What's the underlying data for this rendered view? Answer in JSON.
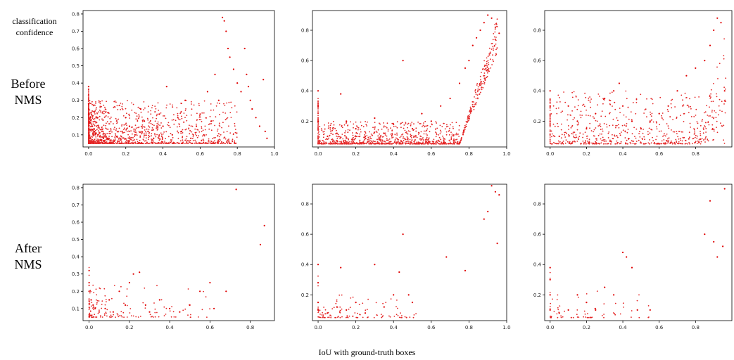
{
  "figure": {
    "y_axis_label": "classification confidence",
    "row_labels": [
      "Before NMS",
      "After NMS"
    ],
    "x_axis_label": "IoU with ground-truth boxes",
    "point_color": "#e00000"
  },
  "chart_data": [
    {
      "type": "scatter",
      "row": "Before NMS",
      "column": 1,
      "xlim": [
        -0.03,
        1.0
      ],
      "ylim": [
        0.03,
        0.82
      ],
      "xticks": [
        0.0,
        0.2,
        0.4,
        0.6,
        0.8,
        1.0
      ],
      "xtick_labels": [
        "0.0",
        "0.2",
        "0.4",
        "0.6",
        "0.8",
        "1.0"
      ],
      "yticks": [
        0.1,
        0.2,
        0.3,
        0.4,
        0.5,
        0.6,
        0.7,
        0.8
      ],
      "ytick_labels": [
        "0.1",
        "0.2",
        "0.3",
        "0.4",
        "0.5",
        "0.6",
        "0.7",
        "0.8"
      ],
      "grid": false,
      "points": [
        [
          0.0,
          0.38
        ],
        [
          0.0,
          0.33
        ],
        [
          0.0,
          0.28
        ],
        [
          0.0,
          0.25
        ],
        [
          0.0,
          0.22
        ],
        [
          0.01,
          0.2
        ],
        [
          0.01,
          0.17
        ],
        [
          0.02,
          0.15
        ],
        [
          0.02,
          0.13
        ],
        [
          0.03,
          0.12
        ],
        [
          0.04,
          0.11
        ],
        [
          0.05,
          0.1
        ],
        [
          0.06,
          0.09
        ],
        [
          0.08,
          0.08
        ],
        [
          0.1,
          0.08
        ],
        [
          0.12,
          0.07
        ],
        [
          0.15,
          0.09
        ],
        [
          0.18,
          0.12
        ],
        [
          0.2,
          0.2
        ],
        [
          0.22,
          0.15
        ],
        [
          0.25,
          0.1
        ],
        [
          0.28,
          0.25
        ],
        [
          0.3,
          0.18
        ],
        [
          0.32,
          0.12
        ],
        [
          0.35,
          0.08
        ],
        [
          0.38,
          0.22
        ],
        [
          0.4,
          0.15
        ],
        [
          0.42,
          0.38
        ],
        [
          0.45,
          0.1
        ],
        [
          0.48,
          0.2
        ],
        [
          0.5,
          0.12
        ],
        [
          0.52,
          0.3
        ],
        [
          0.55,
          0.08
        ],
        [
          0.58,
          0.15
        ],
        [
          0.6,
          0.22
        ],
        [
          0.62,
          0.1
        ],
        [
          0.64,
          0.35
        ],
        [
          0.66,
          0.18
        ],
        [
          0.68,
          0.45
        ],
        [
          0.7,
          0.3
        ],
        [
          0.72,
          0.78
        ],
        [
          0.73,
          0.76
        ],
        [
          0.74,
          0.7
        ],
        [
          0.75,
          0.6
        ],
        [
          0.76,
          0.55
        ],
        [
          0.78,
          0.48
        ],
        [
          0.8,
          0.4
        ],
        [
          0.82,
          0.35
        ],
        [
          0.84,
          0.6
        ],
        [
          0.85,
          0.45
        ],
        [
          0.86,
          0.38
        ],
        [
          0.87,
          0.3
        ],
        [
          0.88,
          0.25
        ],
        [
          0.9,
          0.2
        ],
        [
          0.92,
          0.15
        ],
        [
          0.94,
          0.42
        ],
        [
          0.95,
          0.12
        ],
        [
          0.96,
          0.08
        ]
      ],
      "note": "dense cluster of thousands of points near IoU 0.0-0.3, confidence 0.05-0.2"
    },
    {
      "type": "scatter",
      "row": "Before NMS",
      "column": 2,
      "xlim": [
        -0.03,
        1.0
      ],
      "ylim": [
        0.03,
        0.93
      ],
      "xticks": [
        0.0,
        0.2,
        0.4,
        0.6,
        0.8,
        1.0
      ],
      "xtick_labels": [
        "0.0",
        "0.2",
        "0.4",
        "0.6",
        "0.8",
        "1.0"
      ],
      "yticks": [
        0.2,
        0.4,
        0.6,
        0.8
      ],
      "ytick_labels": [
        "0.2",
        "0.4",
        "0.6",
        "0.8"
      ],
      "grid": false,
      "points": [
        [
          0.0,
          0.4
        ],
        [
          0.0,
          0.3
        ],
        [
          0.0,
          0.2
        ],
        [
          0.05,
          0.1
        ],
        [
          0.1,
          0.12
        ],
        [
          0.12,
          0.38
        ],
        [
          0.15,
          0.2
        ],
        [
          0.2,
          0.15
        ],
        [
          0.25,
          0.1
        ],
        [
          0.3,
          0.22
        ],
        [
          0.35,
          0.12
        ],
        [
          0.4,
          0.18
        ],
        [
          0.45,
          0.6
        ],
        [
          0.5,
          0.15
        ],
        [
          0.55,
          0.25
        ],
        [
          0.6,
          0.2
        ],
        [
          0.65,
          0.3
        ],
        [
          0.7,
          0.35
        ],
        [
          0.75,
          0.45
        ],
        [
          0.78,
          0.55
        ],
        [
          0.8,
          0.6
        ],
        [
          0.82,
          0.7
        ],
        [
          0.84,
          0.75
        ],
        [
          0.86,
          0.8
        ],
        [
          0.88,
          0.85
        ],
        [
          0.9,
          0.9
        ],
        [
          0.92,
          0.88
        ],
        [
          0.94,
          0.82
        ],
        [
          0.96,
          0.78
        ]
      ],
      "note": "dense band at confidence 0.05-0.2 across IoU; steep rise beyond IoU 0.75"
    },
    {
      "type": "scatter",
      "row": "Before NMS",
      "column": 3,
      "xlim": [
        -0.03,
        1.0
      ],
      "ylim": [
        0.03,
        0.93
      ],
      "xticks": [
        0.0,
        0.2,
        0.4,
        0.6,
        0.8
      ],
      "xtick_labels": [
        "0.0",
        "0.2",
        "0.4",
        "0.6",
        "0.8"
      ],
      "yticks": [
        0.2,
        0.4,
        0.6,
        0.8
      ],
      "ytick_labels": [
        "0.2",
        "0.4",
        "0.6",
        "0.8"
      ],
      "grid": false,
      "points": [
        [
          0.0,
          0.4
        ],
        [
          0.0,
          0.3
        ],
        [
          0.0,
          0.2
        ],
        [
          0.05,
          0.1
        ],
        [
          0.1,
          0.3
        ],
        [
          0.15,
          0.2
        ],
        [
          0.2,
          0.15
        ],
        [
          0.25,
          0.25
        ],
        [
          0.3,
          0.35
        ],
        [
          0.35,
          0.4
        ],
        [
          0.38,
          0.45
        ],
        [
          0.4,
          0.3
        ],
        [
          0.45,
          0.2
        ],
        [
          0.5,
          0.15
        ],
        [
          0.55,
          0.2
        ],
        [
          0.6,
          0.25
        ],
        [
          0.65,
          0.3
        ],
        [
          0.7,
          0.4
        ],
        [
          0.75,
          0.5
        ],
        [
          0.8,
          0.55
        ],
        [
          0.85,
          0.6
        ],
        [
          0.88,
          0.7
        ],
        [
          0.9,
          0.8
        ],
        [
          0.92,
          0.88
        ],
        [
          0.94,
          0.85
        ],
        [
          0.96,
          0.4
        ]
      ],
      "note": "widely spread points, rising density at high IoU"
    },
    {
      "type": "scatter",
      "row": "After NMS",
      "column": 1,
      "xlim": [
        -0.03,
        0.92
      ],
      "ylim": [
        0.03,
        0.82
      ],
      "xticks": [
        0.0,
        0.2,
        0.4,
        0.6,
        0.8
      ],
      "xtick_labels": [
        "0.0",
        "0.2",
        "0.4",
        "0.6",
        "0.8"
      ],
      "yticks": [
        0.1,
        0.2,
        0.3,
        0.4,
        0.5,
        0.6,
        0.7,
        0.8
      ],
      "ytick_labels": [
        "0.1",
        "0.2",
        "0.3",
        "0.4",
        "0.5",
        "0.6",
        "0.7",
        "0.8"
      ],
      "grid": false,
      "points": [
        [
          0.0,
          0.32
        ],
        [
          0.0,
          0.25
        ],
        [
          0.0,
          0.2
        ],
        [
          0.01,
          0.15
        ],
        [
          0.02,
          0.12
        ],
        [
          0.03,
          0.1
        ],
        [
          0.05,
          0.08
        ],
        [
          0.08,
          0.1
        ],
        [
          0.1,
          0.15
        ],
        [
          0.12,
          0.08
        ],
        [
          0.15,
          0.2
        ],
        [
          0.18,
          0.12
        ],
        [
          0.2,
          0.25
        ],
        [
          0.22,
          0.3
        ],
        [
          0.25,
          0.31
        ],
        [
          0.28,
          0.12
        ],
        [
          0.3,
          0.08
        ],
        [
          0.35,
          0.15
        ],
        [
          0.4,
          0.1
        ],
        [
          0.45,
          0.08
        ],
        [
          0.5,
          0.12
        ],
        [
          0.55,
          0.2
        ],
        [
          0.6,
          0.25
        ],
        [
          0.62,
          0.1
        ],
        [
          0.68,
          0.2
        ],
        [
          0.73,
          0.79
        ],
        [
          0.85,
          0.47
        ],
        [
          0.87,
          0.58
        ]
      ]
    },
    {
      "type": "scatter",
      "row": "After NMS",
      "column": 2,
      "xlim": [
        -0.03,
        1.0
      ],
      "ylim": [
        0.03,
        0.93
      ],
      "xticks": [
        0.0,
        0.2,
        0.4,
        0.6,
        0.8,
        1.0
      ],
      "xtick_labels": [
        "0.0",
        "0.2",
        "0.4",
        "0.6",
        "0.8",
        "1.0"
      ],
      "yticks": [
        0.2,
        0.4,
        0.6,
        0.8
      ],
      "ytick_labels": [
        "0.2",
        "0.4",
        "0.6",
        "0.8"
      ],
      "grid": false,
      "points": [
        [
          0.0,
          0.4
        ],
        [
          0.0,
          0.28
        ],
        [
          0.0,
          0.15
        ],
        [
          0.0,
          0.1
        ],
        [
          0.05,
          0.08
        ],
        [
          0.1,
          0.12
        ],
        [
          0.12,
          0.38
        ],
        [
          0.15,
          0.1
        ],
        [
          0.2,
          0.15
        ],
        [
          0.25,
          0.08
        ],
        [
          0.3,
          0.4
        ],
        [
          0.35,
          0.12
        ],
        [
          0.4,
          0.2
        ],
        [
          0.43,
          0.35
        ],
        [
          0.45,
          0.6
        ],
        [
          0.48,
          0.2
        ],
        [
          0.5,
          0.15
        ],
        [
          0.68,
          0.45
        ],
        [
          0.78,
          0.36
        ],
        [
          0.88,
          0.7
        ],
        [
          0.9,
          0.75
        ],
        [
          0.92,
          0.92
        ],
        [
          0.94,
          0.88
        ],
        [
          0.95,
          0.54
        ],
        [
          0.96,
          0.86
        ]
      ]
    },
    {
      "type": "scatter",
      "row": "After NMS",
      "column": 3,
      "xlim": [
        -0.03,
        1.0
      ],
      "ylim": [
        0.03,
        0.93
      ],
      "xticks": [
        0.0,
        0.2,
        0.4,
        0.6,
        0.8
      ],
      "xtick_labels": [
        "0.0",
        "0.2",
        "0.4",
        "0.6",
        "0.8"
      ],
      "yticks": [
        0.2,
        0.4,
        0.6,
        0.8
      ],
      "ytick_labels": [
        "0.2",
        "0.4",
        "0.6",
        "0.8"
      ],
      "grid": false,
      "points": [
        [
          0.0,
          0.38
        ],
        [
          0.0,
          0.3
        ],
        [
          0.0,
          0.2
        ],
        [
          0.0,
          0.1
        ],
        [
          0.05,
          0.08
        ],
        [
          0.1,
          0.1
        ],
        [
          0.15,
          0.2
        ],
        [
          0.2,
          0.15
        ],
        [
          0.25,
          0.1
        ],
        [
          0.3,
          0.25
        ],
        [
          0.35,
          0.2
        ],
        [
          0.4,
          0.48
        ],
        [
          0.42,
          0.45
        ],
        [
          0.45,
          0.38
        ],
        [
          0.48,
          0.1
        ],
        [
          0.55,
          0.1
        ],
        [
          0.85,
          0.6
        ],
        [
          0.88,
          0.82
        ],
        [
          0.9,
          0.55
        ],
        [
          0.92,
          0.45
        ],
        [
          0.95,
          0.52
        ],
        [
          0.96,
          0.9
        ]
      ]
    }
  ]
}
